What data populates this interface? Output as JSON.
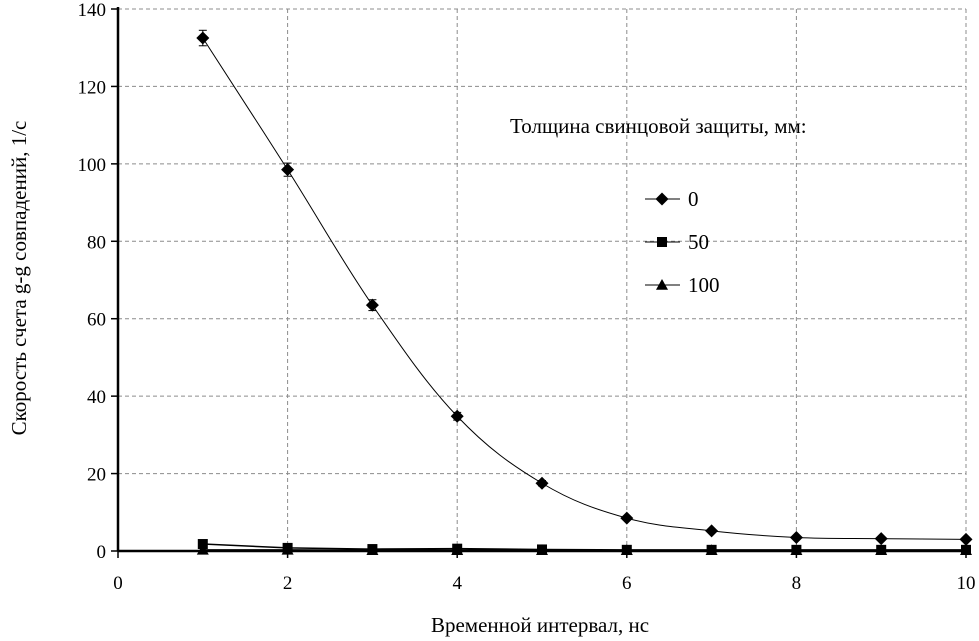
{
  "chart_data": {
    "type": "line",
    "xlabel": "Временной интервал, нс",
    "ylabel": "Скорость счета g-g совпадений, 1/с",
    "xlim": [
      0,
      10
    ],
    "ylim": [
      0,
      140
    ],
    "xticks": [
      0,
      2,
      4,
      6,
      8,
      10
    ],
    "yticks": [
      0,
      20,
      40,
      60,
      80,
      100,
      120,
      140
    ],
    "grid": true,
    "legend": {
      "title": "Толщина свинцовой защиты, мм:",
      "placement": "right"
    },
    "series": [
      {
        "name": "0",
        "marker": "diamond",
        "smooth": true,
        "x": [
          1,
          2,
          3,
          4,
          5,
          6,
          7,
          8,
          9,
          10
        ],
        "y": [
          132.5,
          98.5,
          63.5,
          34.8,
          17.5,
          8.5,
          5.2,
          3.5,
          3.2,
          3.0
        ],
        "yerr": [
          2.0,
          1.7,
          1.4,
          1.0,
          0.7,
          0.5,
          0.4,
          0.3,
          0.3,
          0.3
        ]
      },
      {
        "name": "50",
        "marker": "square",
        "smooth": false,
        "x": [
          1,
          2,
          3,
          4,
          5,
          6,
          7,
          8,
          9,
          10
        ],
        "y": [
          1.8,
          0.8,
          0.5,
          0.6,
          0.4,
          0.3,
          0.3,
          0.3,
          0.3,
          0.3
        ]
      },
      {
        "name": "100",
        "marker": "triangle",
        "smooth": false,
        "x": [
          1,
          2,
          3,
          4,
          5,
          6,
          7,
          8,
          9,
          10
        ],
        "y": [
          0.3,
          0.3,
          0.2,
          0.2,
          0.2,
          0.2,
          0.2,
          0.2,
          0.2,
          0.2
        ]
      }
    ]
  }
}
